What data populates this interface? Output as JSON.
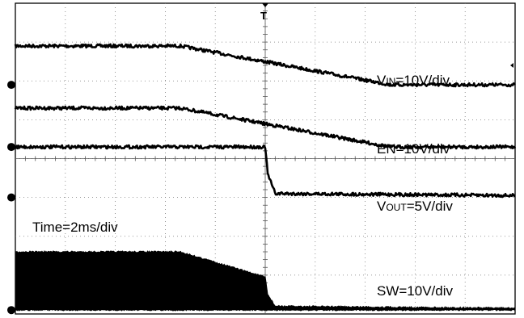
{
  "chart_data": {
    "type": "line",
    "grid": true,
    "divisions": {
      "x": 10,
      "y": 8
    },
    "trigger_marker": "T",
    "annotations": {
      "vin_label": "V",
      "vin_sub": "IN",
      "vin_scale": "=10V/div",
      "en_label": "EN=10V/div",
      "vout_label": "V",
      "vout_sub": "OUT",
      "vout_scale": "=5V/div",
      "sw_label": "SW=10V/div",
      "time_label": "Time=2ms/div"
    },
    "series": [
      {
        "name": "VIN",
        "ground_div": 5.9,
        "x": [
          0,
          3.3,
          7.5,
          10
        ],
        "y": [
          6.9,
          6.9,
          5.9,
          5.9
        ]
      },
      {
        "name": "EN",
        "ground_div": 4.3,
        "x": [
          0,
          3.3,
          7.5,
          10
        ],
        "y": [
          5.3,
          5.3,
          4.3,
          4.3
        ]
      },
      {
        "name": "VOUT",
        "ground_div": 3.0,
        "x": [
          0,
          5.0,
          5.05,
          5.2,
          10
        ],
        "y": [
          4.3,
          4.3,
          3.6,
          3.1,
          3.05
        ]
      },
      {
        "name": "SW",
        "ground_div": 0.1,
        "x": [
          0,
          3.3,
          5.0,
          5.05,
          5.2,
          10
        ],
        "y_high": [
          1.6,
          1.6,
          0.95,
          0.5,
          0.2,
          0.15
        ],
        "y_low": [
          0.1,
          0.1,
          0.1,
          0.1,
          0.1,
          0.1
        ]
      }
    ]
  }
}
